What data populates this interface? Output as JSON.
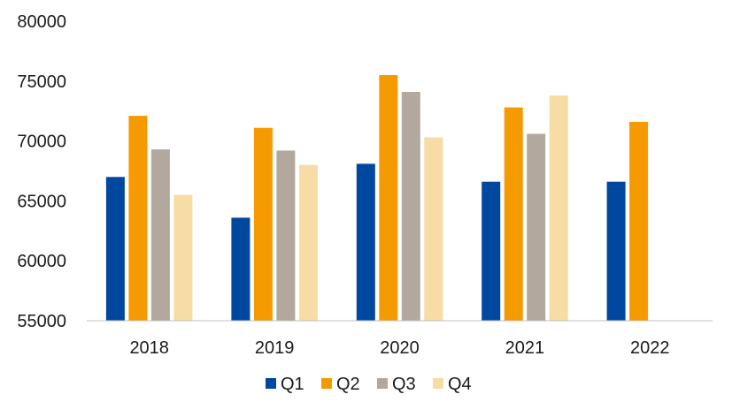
{
  "chart_data": {
    "type": "bar",
    "title": "",
    "xlabel": "",
    "ylabel": "",
    "categories": [
      "2018",
      "2019",
      "2020",
      "2021",
      "2022"
    ],
    "series": [
      {
        "name": "Q1",
        "color": "#0047a0",
        "values": [
          67000,
          63600,
          68100,
          66600,
          66600
        ]
      },
      {
        "name": "Q2",
        "color": "#f59a00",
        "values": [
          72100,
          71100,
          75500,
          72800,
          71600
        ]
      },
      {
        "name": "Q3",
        "color": "#b3a89d",
        "values": [
          69300,
          69200,
          74100,
          70600,
          null
        ]
      },
      {
        "name": "Q4",
        "color": "#f7dca5",
        "values": [
          65500,
          68000,
          70300,
          73800,
          null
        ]
      }
    ],
    "ylim": [
      55000,
      80000
    ],
    "yticks": [
      55000,
      60000,
      65000,
      70000,
      75000,
      80000
    ],
    "ytick_labels": [
      "55000",
      "60000",
      "65000",
      "70000",
      "75000",
      "80000"
    ],
    "grid": false,
    "legend_position": "bottom"
  }
}
